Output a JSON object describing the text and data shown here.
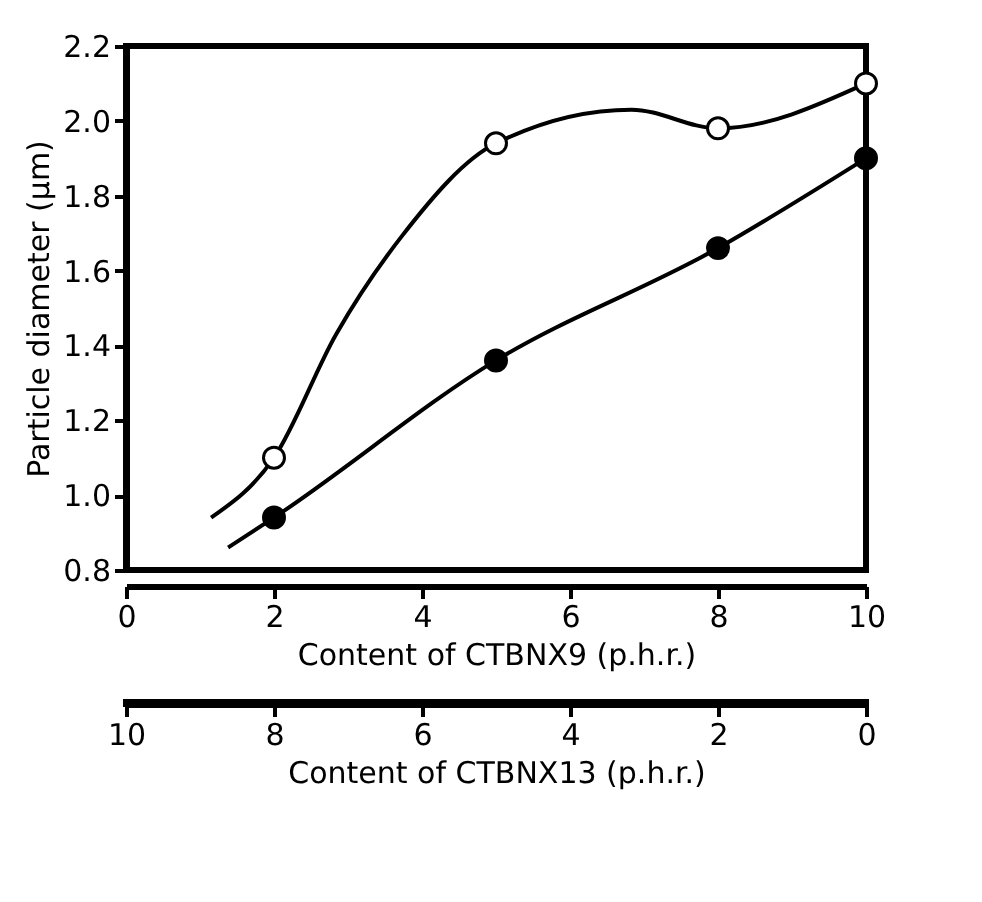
{
  "chart_data": {
    "type": "scatter",
    "xlabel": "Content of CTBNX9 (p.h.r.)",
    "ylabel": "Particle diameter (µm)",
    "x2label": "Content of CTBNX13 (p.h.r.)",
    "xlim": [
      0,
      10
    ],
    "xticks": [
      0,
      2,
      4,
      6,
      8,
      10
    ],
    "x2lim": [
      10,
      0
    ],
    "x2ticks": [
      10,
      8,
      6,
      4,
      2,
      0
    ],
    "ylim": [
      0.8,
      2.2
    ],
    "yticks": [
      0.8,
      {
        "value": 1,
        "label": "1.0"
      },
      1.2,
      1.4,
      1.6,
      1.8,
      {
        "value": 2,
        "label": "2.0"
      },
      2.2
    ],
    "grid": false,
    "series": [
      {
        "type": "line",
        "color": "#000000",
        "marker": "none",
        "line_style": "solid",
        "x": [
          1.15,
          2,
          2.84,
          3.72,
          5,
          6.83,
          8,
          10
        ],
        "values": [
          0.94,
          1.1,
          1.43,
          1.69,
          1.94,
          2.03,
          1.98,
          2.1
        ]
      },
      {
        "type": "line",
        "color": "#000000",
        "marker": "none",
        "line_style": "solid",
        "x": [
          1.38,
          2,
          5,
          8,
          10
        ],
        "values": [
          0.86,
          0.94,
          1.36,
          1.66,
          1.9
        ]
      },
      {
        "color": "#ffffff",
        "marker": "circle",
        "x": [
          2,
          5,
          8,
          10
        ],
        "values": [
          1.1,
          1.94,
          1.98,
          2.1
        ]
      },
      {
        "color": "#000000",
        "marker": "circle",
        "x": [
          2,
          5,
          8,
          10
        ],
        "values": [
          0.94,
          1.36,
          1.66,
          1.9
        ]
      }
    ]
  }
}
